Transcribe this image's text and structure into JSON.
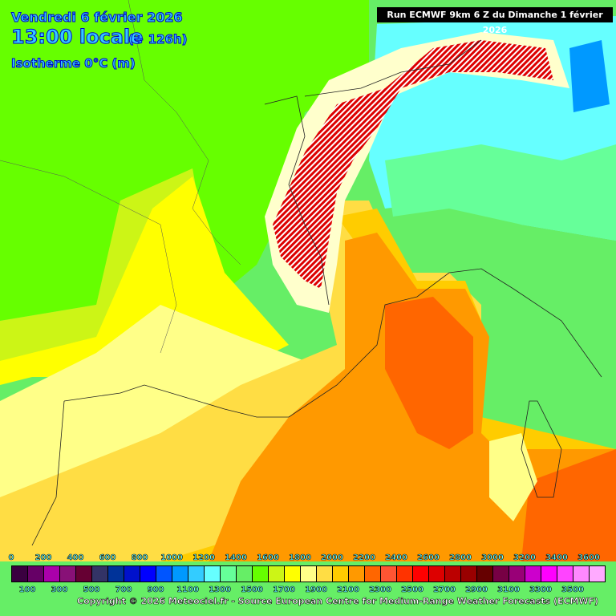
{
  "header": {
    "date": "Vendredi 6 février 2026",
    "time": "13:00 locale",
    "offset": "(+ 126h)",
    "parameter": "Isotherme 0°C (m)",
    "run": "Run ECMWF 9km 6 Z du Dimanche 1 février 2026"
  },
  "legend": {
    "top_labels": [
      "0",
      "200",
      "400",
      "600",
      "800",
      "1000",
      "1200",
      "1400",
      "1600",
      "1800",
      "2000",
      "2200",
      "2400",
      "2600",
      "2800",
      "3000",
      "3200",
      "3400",
      "3600"
    ],
    "bottom_labels": [
      "100",
      "300",
      "500",
      "700",
      "900",
      "1100",
      "1300",
      "1500",
      "1700",
      "1900",
      "2100",
      "2300",
      "2500",
      "2700",
      "2900",
      "3100",
      "3300",
      "3500"
    ],
    "colors": [
      "#3a0040",
      "#660066",
      "#aa00aa",
      "#881177",
      "#660033",
      "#333366",
      "#003399",
      "#0011cc",
      "#0000ff",
      "#0055ff",
      "#0099ff",
      "#33ccff",
      "#66ffff",
      "#66ff99",
      "#66ee66",
      "#66ff00",
      "#ccf516",
      "#ffff00",
      "#ffff88",
      "#ffdd44",
      "#ffcc00",
      "#ff9900",
      "#ff6600",
      "#ff5533",
      "#ff3300",
      "#ff0000",
      "#dd0000",
      "#bb0000",
      "#990000",
      "#660000",
      "#770044",
      "#990077",
      "#cc00cc",
      "#ff00ff",
      "#ff44ff",
      "#ff88ff",
      "#ffaaff"
    ]
  },
  "copyright": "Copyright © 2026 Meteociel.fr - Source European Centre for Medium-Range Weather Forecasts (ECMWF)"
}
